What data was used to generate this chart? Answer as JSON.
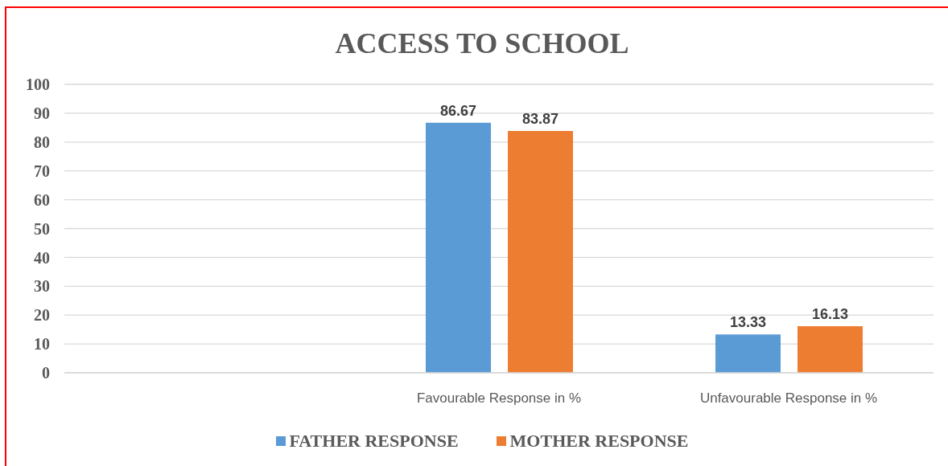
{
  "chart_data": {
    "type": "bar",
    "title": "ACCESS TO SCHOOL",
    "categories": [
      null,
      "Favourable Response in %",
      "Unfavourable Response in %"
    ],
    "series": [
      {
        "name": "FATHER RESPONSE",
        "color": "#5b9bd5",
        "values": [
          null,
          86.67,
          13.33
        ]
      },
      {
        "name": "MOTHER RESPONSE",
        "color": "#ed7d31",
        "values": [
          null,
          83.87,
          16.13
        ]
      }
    ],
    "ylim": [
      0,
      100
    ],
    "yticks": [
      0,
      10,
      20,
      30,
      40,
      50,
      60,
      70,
      80,
      90,
      100
    ],
    "grid": "y",
    "legend": "bottom",
    "data_labels": true
  }
}
